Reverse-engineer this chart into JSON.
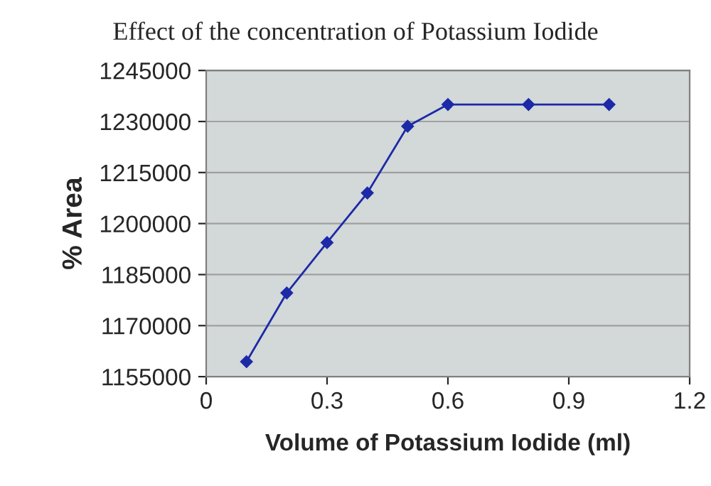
{
  "chart_data": {
    "type": "line",
    "title": "Effect of the concentration of Potassium Iodide",
    "xlabel": "Volume of Potassium Iodide (ml)",
    "ylabel": "% Area",
    "x": [
      0.1,
      0.2,
      0.3,
      0.4,
      0.5,
      0.6,
      0.8,
      1.0
    ],
    "series": [
      {
        "color": "#1c2aa8",
        "values": [
          1159400,
          1179600,
          1194400,
          1209000,
          1228600,
          1235000,
          1235000,
          1235000
        ]
      }
    ],
    "xlim": [
      0,
      1.2
    ],
    "xticks": [
      0,
      0.3,
      0.6,
      0.9,
      1.2
    ],
    "ylim": [
      1155000,
      1245000
    ],
    "yticks": [
      1155000,
      1170000,
      1185000,
      1200000,
      1215000,
      1230000,
      1245000
    ],
    "grid": "y",
    "marker": "diamond",
    "line_style": "solid",
    "legend": false
  }
}
